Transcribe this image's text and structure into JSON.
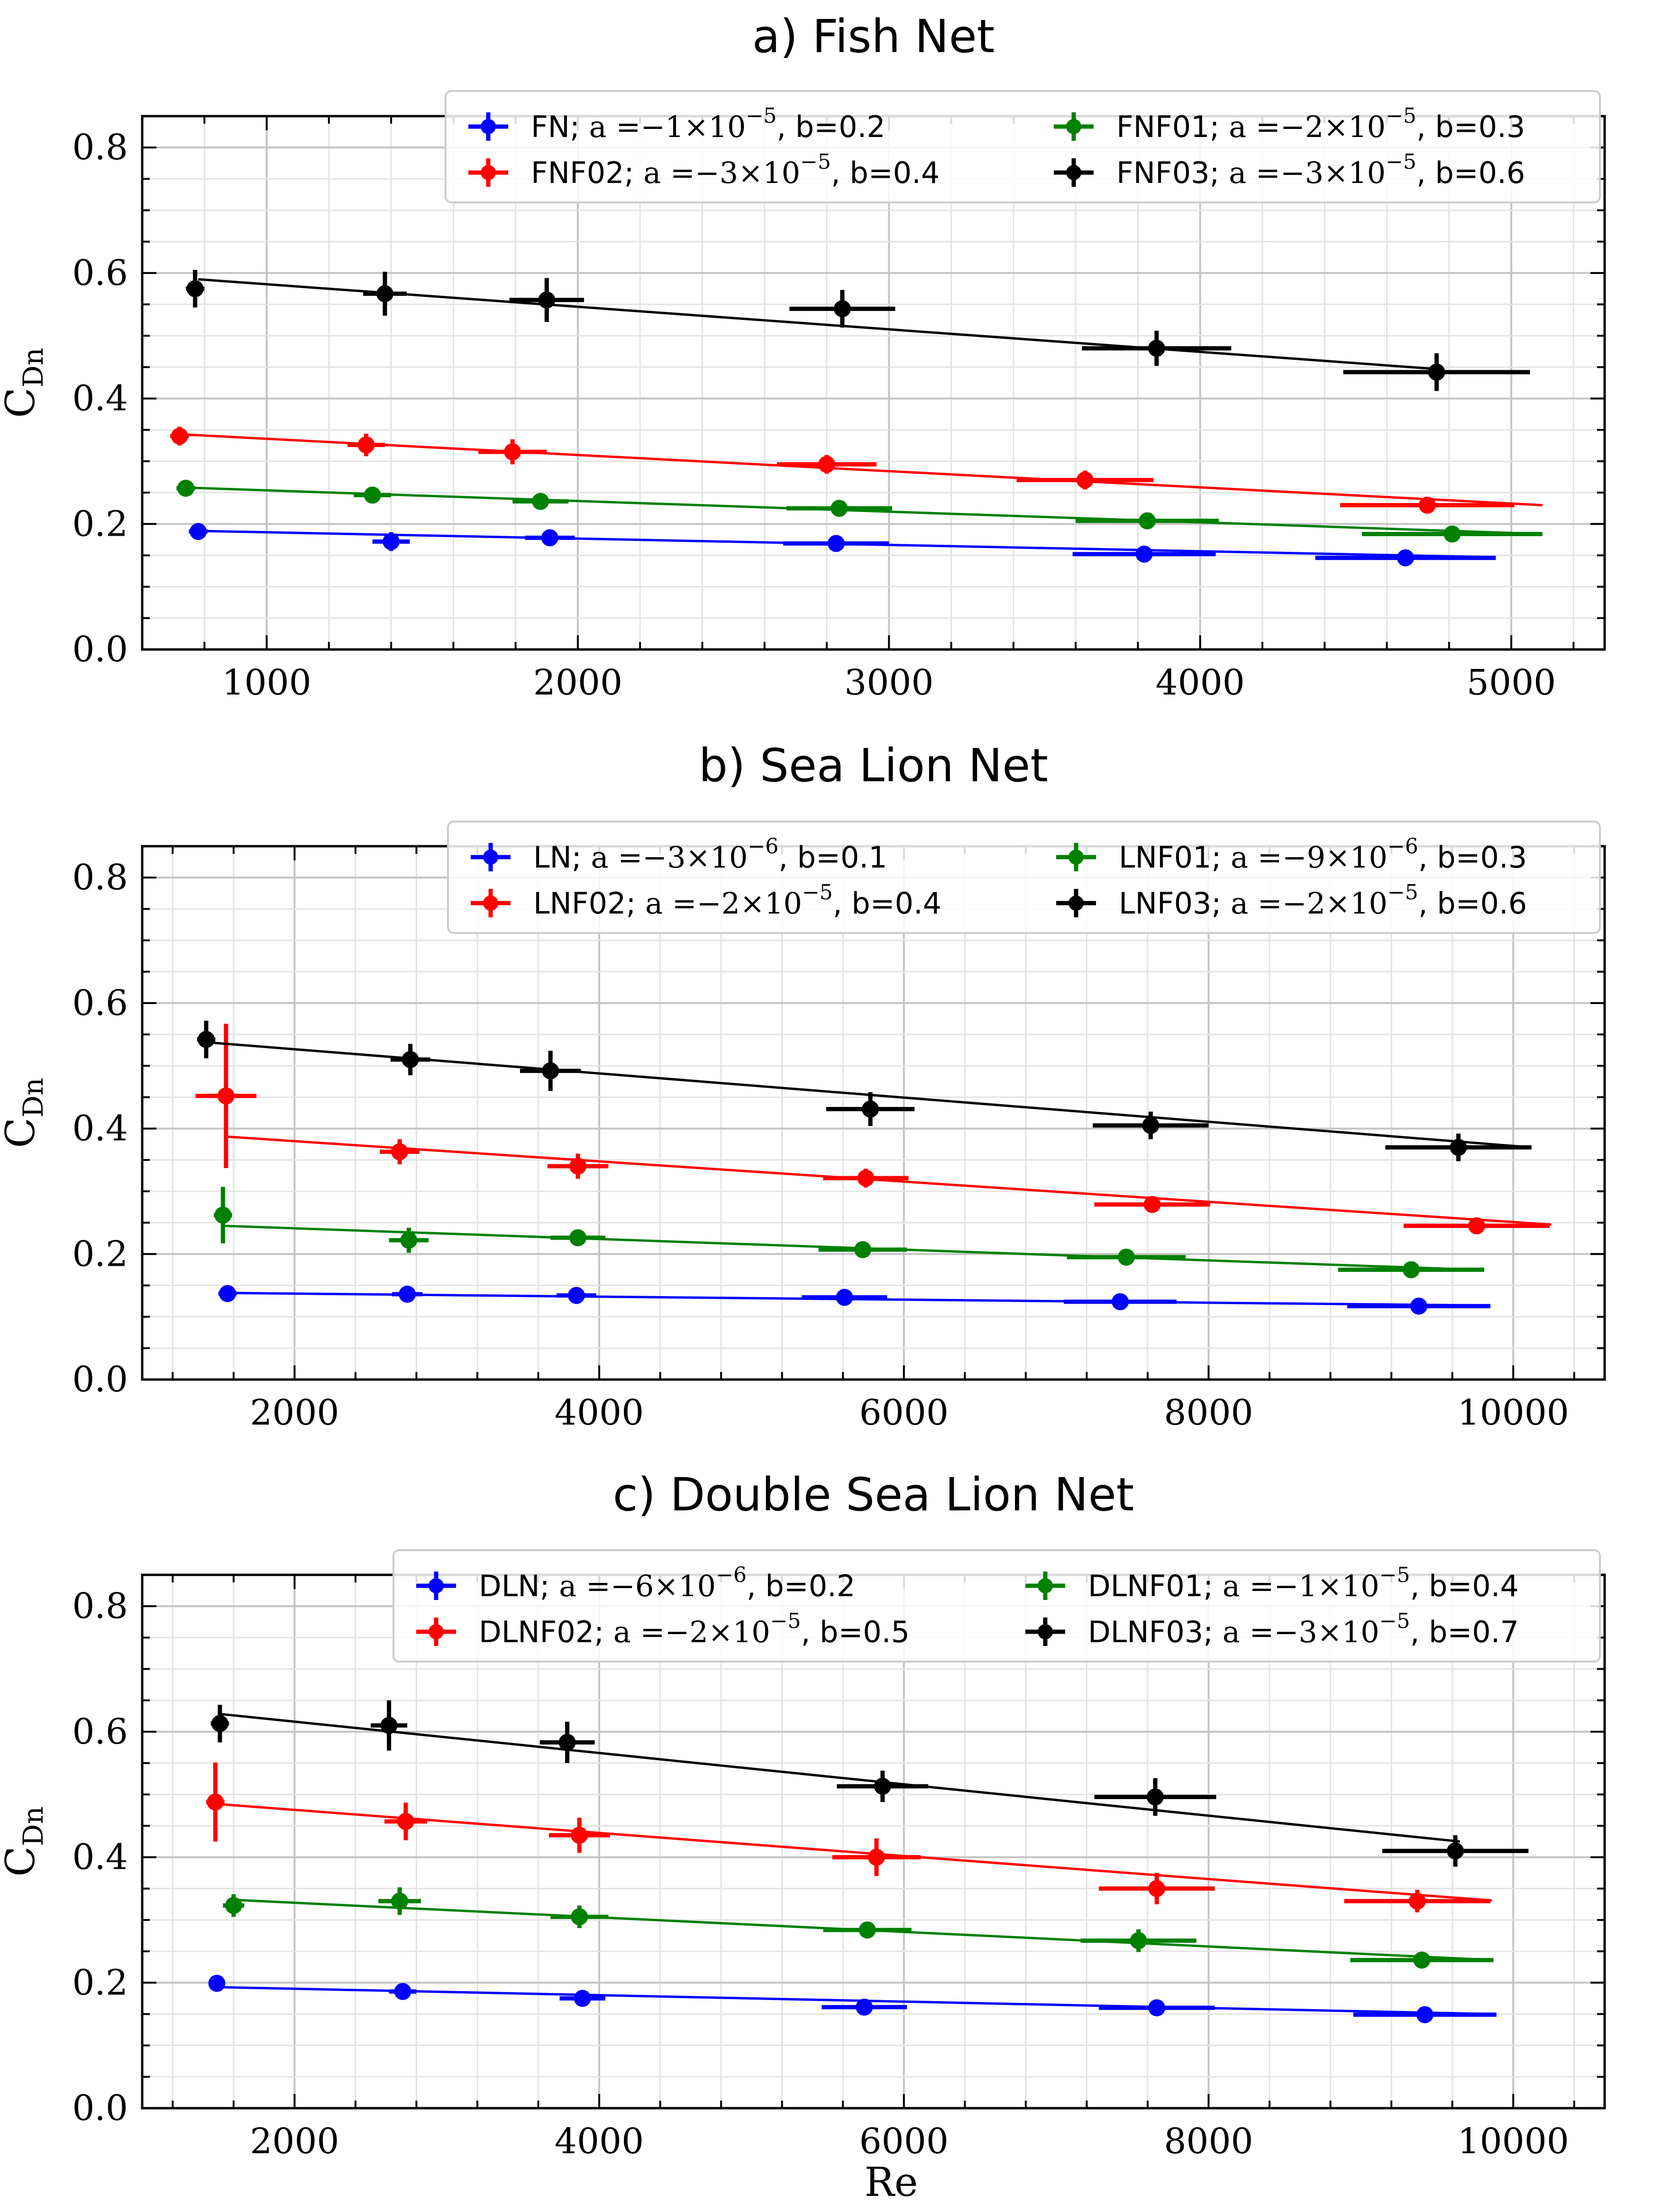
{
  "figure": {
    "xlabel": "Re",
    "ylabel_main": "C",
    "ylabel_sub": "Dn"
  },
  "legend_text": {
    "a_label": "a =",
    "b_label": "b=",
    "times": "×10"
  },
  "chart_data": [
    {
      "type": "scatter",
      "title": "a) Fish Net",
      "xlim": [
        600,
        5300
      ],
      "ylim": [
        0.0,
        0.85
      ],
      "xticks": [
        1000,
        2000,
        3000,
        4000,
        5000
      ],
      "xtick_labels": [
        "1000",
        "2000",
        "3000",
        "4000",
        "5000"
      ],
      "xminor_step": 200,
      "yticks": [
        0.0,
        0.2,
        0.4,
        0.6,
        0.8
      ],
      "ytick_labels": [
        "0.0",
        "0.2",
        "0.4",
        "0.6",
        "0.8"
      ],
      "yminor_step": 0.05,
      "grid": true,
      "legend": "top-right, 2 columns",
      "series": [
        {
          "name": "FN",
          "color": "#0000ff",
          "a_mantissa": "−1",
          "a_exp": "−5",
          "b": "0.2",
          "fit_x": [
            780,
            4950
          ],
          "fit_y": [
            0.189,
            0.147
          ],
          "points": [
            {
              "x": 780,
              "y": 0.188,
              "xerr": 30,
              "yerr": 0.008
            },
            {
              "x": 1400,
              "y": 0.172,
              "xerr": 60,
              "yerr": 0.015
            },
            {
              "x": 1910,
              "y": 0.178,
              "xerr": 80,
              "yerr": 0.008
            },
            {
              "x": 2830,
              "y": 0.169,
              "xerr": 170,
              "yerr": 0.008
            },
            {
              "x": 3820,
              "y": 0.152,
              "xerr": 230,
              "yerr": 0.008
            },
            {
              "x": 4660,
              "y": 0.146,
              "xerr": 290,
              "yerr": 0.008
            }
          ]
        },
        {
          "name": "FNF01",
          "color": "#008000",
          "a_mantissa": "−2",
          "a_exp": "−5",
          "b": "0.3",
          "fit_x": [
            740,
            5100
          ],
          "fit_y": [
            0.258,
            0.184
          ],
          "points": [
            {
              "x": 740,
              "y": 0.257,
              "xerr": 30,
              "yerr": 0.01
            },
            {
              "x": 1340,
              "y": 0.246,
              "xerr": 60,
              "yerr": 0.01
            },
            {
              "x": 1880,
              "y": 0.236,
              "xerr": 90,
              "yerr": 0.01
            },
            {
              "x": 2840,
              "y": 0.225,
              "xerr": 170,
              "yerr": 0.01
            },
            {
              "x": 3830,
              "y": 0.205,
              "xerr": 230,
              "yerr": 0.01
            },
            {
              "x": 4810,
              "y": 0.184,
              "xerr": 290,
              "yerr": 0.01
            }
          ]
        },
        {
          "name": "FNF02",
          "color": "#ff0000",
          "a_mantissa": "−3",
          "a_exp": "−5",
          "b": "0.4",
          "fit_x": [
            720,
            5100
          ],
          "fit_y": [
            0.343,
            0.23
          ],
          "points": [
            {
              "x": 720,
              "y": 0.34,
              "xerr": 30,
              "yerr": 0.015
            },
            {
              "x": 1320,
              "y": 0.326,
              "xerr": 60,
              "yerr": 0.018
            },
            {
              "x": 1790,
              "y": 0.315,
              "xerr": 110,
              "yerr": 0.02
            },
            {
              "x": 2800,
              "y": 0.295,
              "xerr": 160,
              "yerr": 0.015
            },
            {
              "x": 3630,
              "y": 0.27,
              "xerr": 220,
              "yerr": 0.015
            },
            {
              "x": 4730,
              "y": 0.23,
              "xerr": 280,
              "yerr": 0.01
            }
          ]
        },
        {
          "name": "FNF03",
          "color": "#000000",
          "a_mantissa": "−3",
          "a_exp": "−5",
          "b": "0.6",
          "fit_x": [
            780,
            4760
          ],
          "fit_y": [
            0.59,
            0.447
          ],
          "points": [
            {
              "x": 770,
              "y": 0.575,
              "xerr": 30,
              "yerr": 0.03
            },
            {
              "x": 1380,
              "y": 0.567,
              "xerr": 70,
              "yerr": 0.035
            },
            {
              "x": 1900,
              "y": 0.557,
              "xerr": 120,
              "yerr": 0.035
            },
            {
              "x": 2850,
              "y": 0.543,
              "xerr": 170,
              "yerr": 0.03
            },
            {
              "x": 3860,
              "y": 0.48,
              "xerr": 240,
              "yerr": 0.028
            },
            {
              "x": 4760,
              "y": 0.442,
              "xerr": 300,
              "yerr": 0.03
            }
          ]
        }
      ]
    },
    {
      "type": "scatter",
      "title": "b) Sea Lion Net",
      "xlim": [
        1000,
        10600
      ],
      "ylim": [
        0.0,
        0.85
      ],
      "xticks": [
        2000,
        4000,
        6000,
        8000,
        10000
      ],
      "xtick_labels": [
        "2000",
        "4000",
        "6000",
        "8000",
        "10000"
      ],
      "xminor_step": 400,
      "yticks": [
        0.0,
        0.2,
        0.4,
        0.6,
        0.8
      ],
      "ytick_labels": [
        "0.0",
        "0.2",
        "0.4",
        "0.6",
        "0.8"
      ],
      "yminor_step": 0.05,
      "grid": true,
      "legend": "top-right, 2 columns",
      "series": [
        {
          "name": "LN",
          "color": "#0000ff",
          "a_mantissa": "−3",
          "a_exp": "−6",
          "b": "0.1",
          "fit_x": [
            1560,
            9850
          ],
          "fit_y": [
            0.138,
            0.118
          ],
          "points": [
            {
              "x": 1560,
              "y": 0.137,
              "xerr": 60,
              "yerr": 0.006
            },
            {
              "x": 2740,
              "y": 0.136,
              "xerr": 100,
              "yerr": 0.006
            },
            {
              "x": 3850,
              "y": 0.134,
              "xerr": 130,
              "yerr": 0.006
            },
            {
              "x": 5610,
              "y": 0.131,
              "xerr": 280,
              "yerr": 0.006
            },
            {
              "x": 7420,
              "y": 0.124,
              "xerr": 370,
              "yerr": 0.006
            },
            {
              "x": 9380,
              "y": 0.117,
              "xerr": 470,
              "yerr": 0.006
            }
          ]
        },
        {
          "name": "LNF01",
          "color": "#008000",
          "a_mantissa": "−9",
          "a_exp": "−6",
          "b": "0.3",
          "fit_x": [
            1530,
            9750
          ],
          "fit_y": [
            0.245,
            0.175
          ],
          "points": [
            {
              "x": 1530,
              "y": 0.262,
              "xerr": 60,
              "yerr": 0.045
            },
            {
              "x": 2750,
              "y": 0.222,
              "xerr": 130,
              "yerr": 0.02
            },
            {
              "x": 3860,
              "y": 0.226,
              "xerr": 180,
              "yerr": 0.008
            },
            {
              "x": 5730,
              "y": 0.207,
              "xerr": 290,
              "yerr": 0.008
            },
            {
              "x": 7460,
              "y": 0.195,
              "xerr": 390,
              "yerr": 0.008
            },
            {
              "x": 9330,
              "y": 0.175,
              "xerr": 480,
              "yerr": 0.008
            }
          ]
        },
        {
          "name": "LNF02",
          "color": "#ff0000",
          "a_mantissa": "−2",
          "a_exp": "−5",
          "b": "0.4",
          "fit_x": [
            1560,
            10250
          ],
          "fit_y": [
            0.387,
            0.247
          ],
          "points": [
            {
              "x": 1550,
              "y": 0.452,
              "xerr": 200,
              "yerr": 0.115
            },
            {
              "x": 2690,
              "y": 0.363,
              "xerr": 130,
              "yerr": 0.02
            },
            {
              "x": 3860,
              "y": 0.34,
              "xerr": 200,
              "yerr": 0.02
            },
            {
              "x": 5750,
              "y": 0.321,
              "xerr": 280,
              "yerr": 0.015
            },
            {
              "x": 7630,
              "y": 0.279,
              "xerr": 380,
              "yerr": 0.012
            },
            {
              "x": 9760,
              "y": 0.245,
              "xerr": 480,
              "yerr": 0.008
            }
          ]
        },
        {
          "name": "LNF03",
          "color": "#000000",
          "a_mantissa": "−2",
          "a_exp": "−5",
          "b": "0.6",
          "fit_x": [
            1450,
            10120
          ],
          "fit_y": [
            0.537,
            0.37
          ],
          "points": [
            {
              "x": 1420,
              "y": 0.542,
              "xerr": 60,
              "yerr": 0.03
            },
            {
              "x": 2760,
              "y": 0.51,
              "xerr": 130,
              "yerr": 0.025
            },
            {
              "x": 3680,
              "y": 0.492,
              "xerr": 200,
              "yerr": 0.032
            },
            {
              "x": 5780,
              "y": 0.431,
              "xerr": 290,
              "yerr": 0.027
            },
            {
              "x": 7620,
              "y": 0.405,
              "xerr": 380,
              "yerr": 0.022
            },
            {
              "x": 9640,
              "y": 0.37,
              "xerr": 480,
              "yerr": 0.022
            }
          ]
        }
      ]
    },
    {
      "type": "scatter",
      "title": "c) Double Sea Lion Net",
      "xlim": [
        1000,
        10600
      ],
      "ylim": [
        0.0,
        0.85
      ],
      "xticks": [
        2000,
        4000,
        6000,
        8000,
        10000
      ],
      "xtick_labels": [
        "2000",
        "4000",
        "6000",
        "8000",
        "10000"
      ],
      "xminor_step": 400,
      "yticks": [
        0.0,
        0.2,
        0.4,
        0.6,
        0.8
      ],
      "ytick_labels": [
        "0.0",
        "0.2",
        "0.4",
        "0.6",
        "0.8"
      ],
      "yminor_step": 0.05,
      "grid": true,
      "legend": "top-right, 2 columns",
      "series": [
        {
          "name": "DLN",
          "color": "#0000ff",
          "a_mantissa": "−6",
          "a_exp": "−6",
          "b": "0.2",
          "fit_x": [
            1480,
            9870
          ],
          "fit_y": [
            0.193,
            0.15
          ],
          "points": [
            {
              "x": 1490,
              "y": 0.199,
              "xerr": 50,
              "yerr": 0.008
            },
            {
              "x": 2710,
              "y": 0.186,
              "xerr": 90,
              "yerr": 0.008
            },
            {
              "x": 3890,
              "y": 0.175,
              "xerr": 150,
              "yerr": 0.008
            },
            {
              "x": 5740,
              "y": 0.161,
              "xerr": 280,
              "yerr": 0.008
            },
            {
              "x": 7660,
              "y": 0.16,
              "xerr": 380,
              "yerr": 0.008
            },
            {
              "x": 9420,
              "y": 0.149,
              "xerr": 470,
              "yerr": 0.008
            }
          ]
        },
        {
          "name": "DLNF01",
          "color": "#008000",
          "a_mantissa": "−1",
          "a_exp": "−5",
          "b": "0.4",
          "fit_x": [
            1600,
            9870
          ],
          "fit_y": [
            0.332,
            0.236
          ],
          "points": [
            {
              "x": 1600,
              "y": 0.323,
              "xerr": 70,
              "yerr": 0.018
            },
            {
              "x": 2690,
              "y": 0.33,
              "xerr": 140,
              "yerr": 0.022
            },
            {
              "x": 3870,
              "y": 0.305,
              "xerr": 190,
              "yerr": 0.018
            },
            {
              "x": 5760,
              "y": 0.284,
              "xerr": 290,
              "yerr": 0.012
            },
            {
              "x": 7540,
              "y": 0.267,
              "xerr": 380,
              "yerr": 0.018
            },
            {
              "x": 9400,
              "y": 0.236,
              "xerr": 470,
              "yerr": 0.01
            }
          ]
        },
        {
          "name": "DLNF02",
          "color": "#ff0000",
          "a_mantissa": "−2",
          "a_exp": "−5",
          "b": "0.5",
          "fit_x": [
            1480,
            9860
          ],
          "fit_y": [
            0.485,
            0.331
          ],
          "points": [
            {
              "x": 1480,
              "y": 0.488,
              "xerr": 60,
              "yerr": 0.063
            },
            {
              "x": 2730,
              "y": 0.457,
              "xerr": 140,
              "yerr": 0.03
            },
            {
              "x": 3870,
              "y": 0.435,
              "xerr": 200,
              "yerr": 0.028
            },
            {
              "x": 5820,
              "y": 0.4,
              "xerr": 290,
              "yerr": 0.03
            },
            {
              "x": 7660,
              "y": 0.35,
              "xerr": 380,
              "yerr": 0.025
            },
            {
              "x": 9370,
              "y": 0.33,
              "xerr": 480,
              "yerr": 0.018
            }
          ]
        },
        {
          "name": "DLNF03",
          "color": "#000000",
          "a_mantissa": "−3",
          "a_exp": "−5",
          "b": "0.7",
          "fit_x": [
            1520,
            9650
          ],
          "fit_y": [
            0.628,
            0.425
          ],
          "points": [
            {
              "x": 1510,
              "y": 0.613,
              "xerr": 60,
              "yerr": 0.03
            },
            {
              "x": 2620,
              "y": 0.61,
              "xerr": 120,
              "yerr": 0.04
            },
            {
              "x": 3790,
              "y": 0.583,
              "xerr": 180,
              "yerr": 0.033
            },
            {
              "x": 5860,
              "y": 0.513,
              "xerr": 300,
              "yerr": 0.025
            },
            {
              "x": 7650,
              "y": 0.496,
              "xerr": 400,
              "yerr": 0.03
            },
            {
              "x": 9620,
              "y": 0.41,
              "xerr": 480,
              "yerr": 0.025
            }
          ]
        }
      ]
    }
  ]
}
